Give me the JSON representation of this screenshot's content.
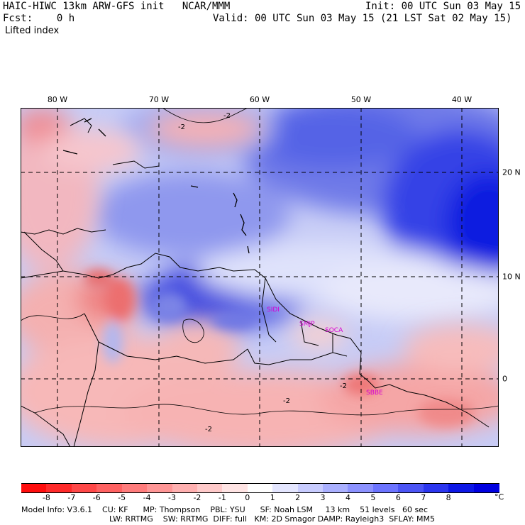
{
  "header": {
    "title": "HAIC-HIWC 13km ARW-GFS init   NCAR/MMM",
    "init": "Init: 00 UTC Sun 03 May 15",
    "fcst": "Fcst:    0 h",
    "valid": "Valid: 00 UTC Sun 03 May 15 (21 LST Sat 02 May 15)",
    "field": "Lifted index"
  },
  "map": {
    "lon_labels": [
      "80 W",
      "70 W",
      "60 W",
      "50 W",
      "40 W"
    ],
    "lat_labels": [
      "20 N",
      "10 N",
      "0"
    ],
    "contour_labels": [
      "-2",
      "-2",
      "-2",
      "-2",
      "-2"
    ],
    "sites": [
      "SIDI",
      "SMJP",
      "SOCA",
      "SBBE"
    ],
    "colors": {
      "negative_strong": "#ff1a1a",
      "negative_weak": "#ffd9d9",
      "neutral": "#ffffff",
      "positive_weak": "#d9dcff",
      "positive_strong": "#0000e6",
      "site_label": "#d400d4"
    }
  },
  "colorbar": {
    "labels": [
      "-8",
      "-7",
      "-6",
      "-5",
      "-4",
      "-3",
      "-2",
      "-1",
      "0",
      "1",
      "2",
      "3",
      "4",
      "5",
      "6",
      "7",
      "8"
    ],
    "unit": "°C",
    "colors": [
      "#ff0d0d",
      "#ff2a2a",
      "#ff4848",
      "#ff6262",
      "#ff7c7c",
      "#ff9696",
      "#ffb0b0",
      "#ffcaca",
      "#ffe4e4",
      "#ffffff",
      "#e4e6ff",
      "#c8ccff",
      "#aab0ff",
      "#8c92ff",
      "#6c74ff",
      "#4c55f5",
      "#2c36ef",
      "#0d18e6",
      "#0000e0"
    ]
  },
  "model_info": {
    "line1": "Model Info: V3.6.1    CU: KF      MP: Thompson    PBL: YSU      SF: Noah LSM     13 km    51 levels   60 sec",
    "line2": "LW: RRTMG    SW: RRTMG  DIFF: full   KM: 2D Smagor DAMP: Rayleigh3  SFLAY: MM5"
  }
}
